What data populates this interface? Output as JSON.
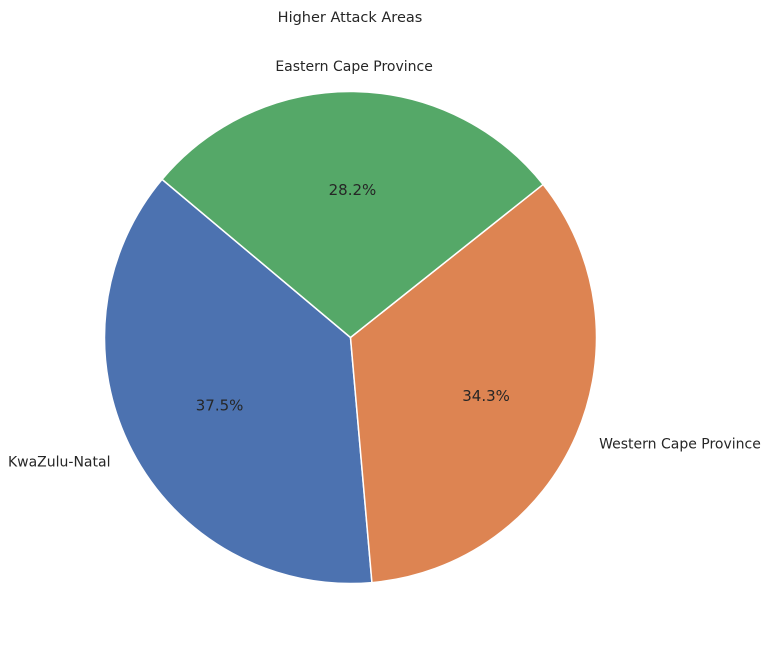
{
  "chart_data": {
    "type": "pie",
    "title": "Higher Attack Areas",
    "categories": [
      "KwaZulu-Natal",
      "Western Cape Province",
      "Eastern Cape Province"
    ],
    "values": [
      37.5,
      34.3,
      28.2
    ],
    "percent_labels": [
      "37.5%",
      "34.3%",
      "28.2%"
    ],
    "colors": [
      "#4c72b0",
      "#dd8452",
      "#55a868"
    ],
    "start_angle_deg": 140,
    "direction": "counterclockwise",
    "legend": "none",
    "grid": false
  }
}
